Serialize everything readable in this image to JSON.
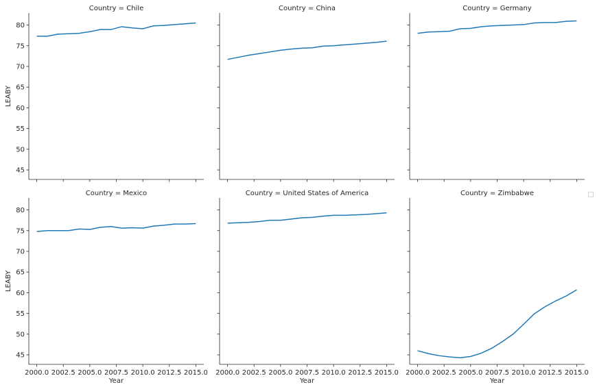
{
  "chart_data": {
    "type": "line",
    "facet_by": "Country",
    "title_prefix": "Country = ",
    "xlabel": "Year",
    "ylabel": "LEABY",
    "xlim": [
      1999.25,
      2015.75
    ],
    "ylim": [
      42.7,
      82.9
    ],
    "x_ticks": [
      2000.0,
      2002.5,
      2005.0,
      2007.5,
      2010.0,
      2012.5,
      2015.0
    ],
    "y_ticks": [
      45,
      50,
      55,
      60,
      65,
      70,
      75,
      80
    ],
    "grid": false,
    "color": "#1f77b4",
    "x": [
      2000,
      2001,
      2002,
      2003,
      2004,
      2005,
      2006,
      2007,
      2008,
      2009,
      2010,
      2011,
      2012,
      2013,
      2014,
      2015
    ],
    "panels": [
      {
        "country": "Chile",
        "values": [
          77.3,
          77.3,
          77.8,
          77.9,
          78.0,
          78.4,
          78.9,
          78.9,
          79.6,
          79.3,
          79.1,
          79.8,
          79.9,
          80.1,
          80.3,
          80.5
        ]
      },
      {
        "country": "China",
        "values": [
          71.7,
          72.2,
          72.7,
          73.1,
          73.5,
          73.9,
          74.2,
          74.4,
          74.5,
          74.9,
          75.0,
          75.2,
          75.4,
          75.6,
          75.8,
          76.1
        ]
      },
      {
        "country": "Germany",
        "values": [
          78.0,
          78.3,
          78.4,
          78.5,
          79.1,
          79.2,
          79.6,
          79.8,
          79.9,
          80.0,
          80.1,
          80.5,
          80.6,
          80.6,
          80.9,
          81.0
        ]
      },
      {
        "country": "Mexico",
        "values": [
          74.8,
          75.0,
          75.0,
          75.0,
          75.4,
          75.3,
          75.8,
          76.0,
          75.6,
          75.7,
          75.6,
          76.1,
          76.3,
          76.6,
          76.6,
          76.7
        ]
      },
      {
        "country": "United States of America",
        "values": [
          76.8,
          76.9,
          77.0,
          77.2,
          77.5,
          77.5,
          77.8,
          78.1,
          78.2,
          78.5,
          78.7,
          78.7,
          78.8,
          78.9,
          79.1,
          79.3
        ]
      },
      {
        "country": "Zimbabwe",
        "values": [
          46.0,
          45.3,
          44.8,
          44.5,
          44.3,
          44.6,
          45.4,
          46.6,
          48.2,
          50.0,
          52.4,
          54.9,
          56.6,
          58.0,
          59.2,
          60.7
        ]
      }
    ]
  }
}
